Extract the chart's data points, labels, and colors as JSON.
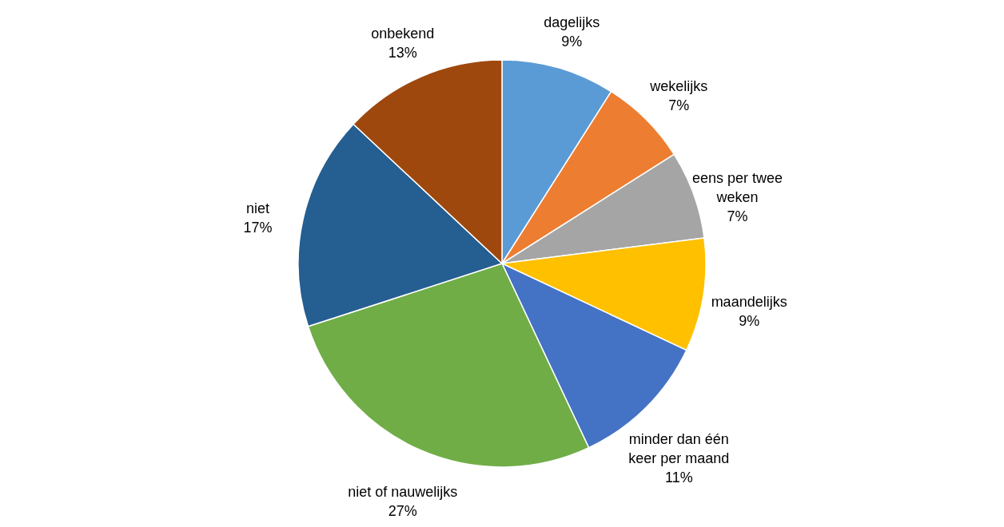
{
  "chart_data": {
    "type": "pie",
    "categories": [
      "dagelijks",
      "wekelijks",
      "eens per twee weken",
      "maandelijks",
      "minder dan één keer per maand",
      "niet of nauwelijks",
      "niet",
      "onbekend"
    ],
    "values": [
      9,
      7,
      7,
      9,
      11,
      27,
      17,
      13
    ],
    "value_labels": [
      "9%",
      "7%",
      "7%",
      "9%",
      "11%",
      "27%",
      "17%",
      "13%"
    ],
    "colors": [
      "#5b9bd5",
      "#ed7d31",
      "#a5a5a5",
      "#ffc000",
      "#4472c4",
      "#70ad47",
      "#255e91",
      "#9e480e"
    ],
    "legend": false
  }
}
